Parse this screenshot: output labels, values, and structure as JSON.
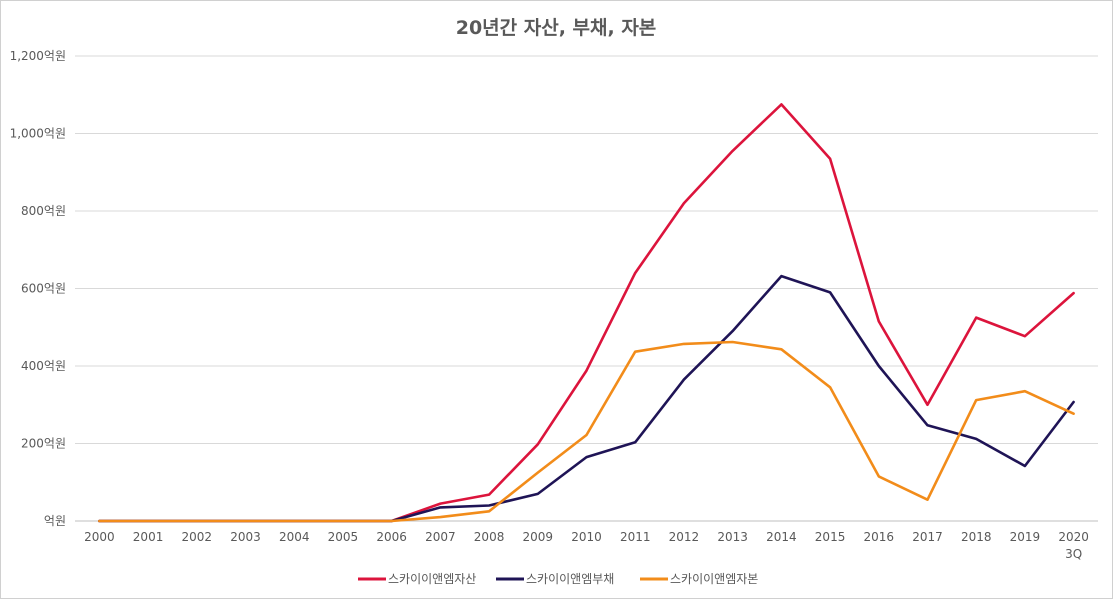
{
  "chart_data": {
    "type": "line",
    "title": "20년간 자산, 부채, 자본",
    "xlabel": "",
    "ylabel": "",
    "categories": [
      "2000",
      "2001",
      "2002",
      "2003",
      "2004",
      "2005",
      "2006",
      "2007",
      "2008",
      "2009",
      "2010",
      "2011",
      "2012",
      "2013",
      "2014",
      "2015",
      "2016",
      "2017",
      "2018",
      "2019",
      "2020"
    ],
    "category_sublabels": {
      "2020": "3Q"
    },
    "yticks": [
      "억원",
      "200억원",
      "400억원",
      "600억원",
      "800억원",
      "1,000억원",
      "1,200억원"
    ],
    "ylim": [
      0,
      1200
    ],
    "grid": true,
    "legend_position": "bottom",
    "series": [
      {
        "name": "스카이이앤엠자산",
        "color": "#dc143c",
        "values": [
          0,
          0,
          0,
          0,
          0,
          0,
          0,
          45,
          68,
          198,
          388,
          640,
          820,
          955,
          1075,
          935,
          515,
          300,
          525,
          477,
          588
        ]
      },
      {
        "name": "스카이이앤엠부채",
        "color": "#1f1456",
        "values": [
          0,
          0,
          0,
          0,
          0,
          0,
          0,
          35,
          40,
          70,
          165,
          203,
          365,
          490,
          632,
          590,
          400,
          247,
          212,
          142,
          307
        ]
      },
      {
        "name": "스카이이앤엠자본",
        "color": "#f28c1a",
        "values": [
          0,
          0,
          0,
          0,
          0,
          0,
          0,
          10,
          25,
          125,
          222,
          437,
          457,
          462,
          443,
          345,
          115,
          55,
          312,
          335,
          277
        ]
      }
    ]
  }
}
